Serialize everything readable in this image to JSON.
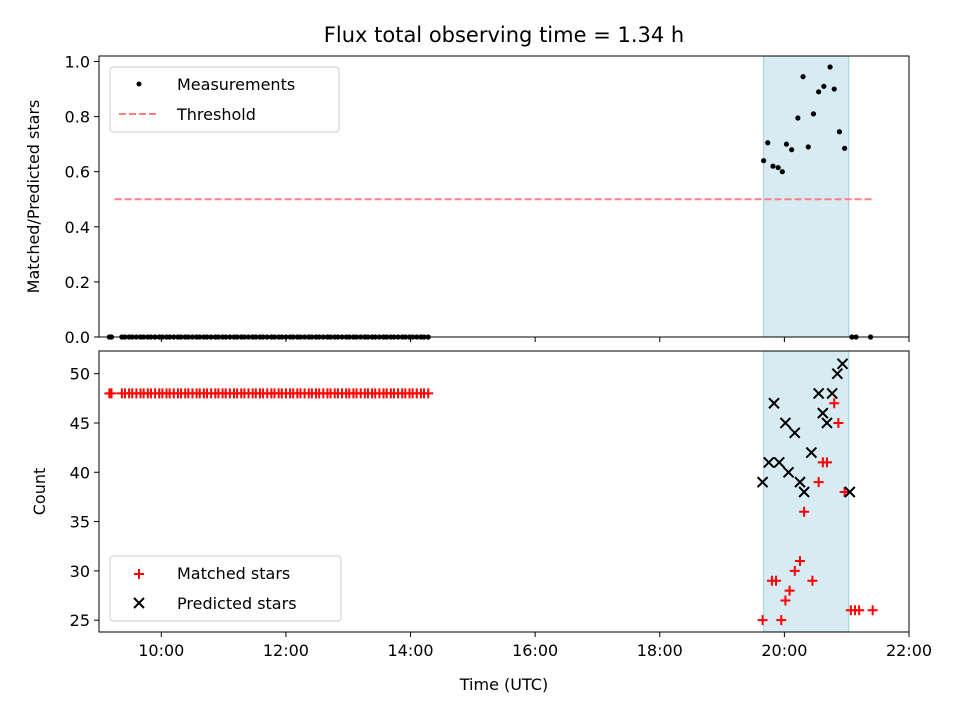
{
  "chart_data": {
    "title": "Flux total observing time = 1.34 h",
    "type": "scatter",
    "xlabel": "Time (UTC)",
    "xlim": [
      "09:00",
      "22:00"
    ],
    "xticks": [
      "10:00",
      "12:00",
      "14:00",
      "16:00",
      "18:00",
      "20:00",
      "22:00"
    ],
    "highlight_span": {
      "start": "19:40",
      "end": "21:02",
      "color": "#add8e6"
    },
    "grid": false,
    "panels": [
      {
        "ylabel": "Matched/Predicted stars",
        "ylim": [
          0,
          1.02
        ],
        "yticks": [
          "0.0",
          "0.2",
          "0.4",
          "0.6",
          "0.8",
          "1.0"
        ],
        "legend_position": "upper-left",
        "series": [
          {
            "name": "Measurements",
            "kind": "scatter",
            "color": "#000000",
            "points": [
              [
                "09:10",
                0
              ],
              [
                "09:12",
                0
              ],
              [
                "09:22",
                0
              ],
              [
                "09:25",
                0
              ],
              [
                "09:29",
                0
              ],
              [
                "09:32",
                0
              ],
              [
                "09:36",
                0
              ],
              [
                "09:40",
                0
              ],
              [
                "09:43",
                0
              ],
              [
                "09:47",
                0
              ],
              [
                "09:50",
                0
              ],
              [
                "09:54",
                0
              ],
              [
                "09:58",
                0
              ],
              [
                "10:01",
                0
              ],
              [
                "10:05",
                0
              ],
              [
                "10:08",
                0
              ],
              [
                "10:12",
                0
              ],
              [
                "10:16",
                0
              ],
              [
                "10:19",
                0
              ],
              [
                "10:23",
                0
              ],
              [
                "10:26",
                0
              ],
              [
                "10:30",
                0
              ],
              [
                "10:34",
                0
              ],
              [
                "10:37",
                0
              ],
              [
                "10:41",
                0
              ],
              [
                "10:44",
                0
              ],
              [
                "10:48",
                0
              ],
              [
                "10:52",
                0
              ],
              [
                "10:55",
                0
              ],
              [
                "10:59",
                0
              ],
              [
                "11:02",
                0
              ],
              [
                "11:06",
                0
              ],
              [
                "11:10",
                0
              ],
              [
                "11:13",
                0
              ],
              [
                "11:17",
                0
              ],
              [
                "11:20",
                0
              ],
              [
                "11:24",
                0
              ],
              [
                "11:28",
                0
              ],
              [
                "11:31",
                0
              ],
              [
                "11:35",
                0
              ],
              [
                "11:38",
                0
              ],
              [
                "11:42",
                0
              ],
              [
                "11:46",
                0
              ],
              [
                "11:49",
                0
              ],
              [
                "11:53",
                0
              ],
              [
                "11:56",
                0
              ],
              [
                "12:00",
                0
              ],
              [
                "12:04",
                0
              ],
              [
                "12:07",
                0
              ],
              [
                "12:11",
                0
              ],
              [
                "12:14",
                0
              ],
              [
                "12:18",
                0
              ],
              [
                "12:22",
                0
              ],
              [
                "12:25",
                0
              ],
              [
                "12:29",
                0
              ],
              [
                "12:32",
                0
              ],
              [
                "12:36",
                0
              ],
              [
                "12:40",
                0
              ],
              [
                "12:43",
                0
              ],
              [
                "12:47",
                0
              ],
              [
                "12:50",
                0
              ],
              [
                "12:54",
                0
              ],
              [
                "12:58",
                0
              ],
              [
                "13:01",
                0
              ],
              [
                "13:05",
                0
              ],
              [
                "13:08",
                0
              ],
              [
                "13:12",
                0
              ],
              [
                "13:16",
                0
              ],
              [
                "13:19",
                0
              ],
              [
                "13:23",
                0
              ],
              [
                "13:26",
                0
              ],
              [
                "13:30",
                0
              ],
              [
                "13:34",
                0
              ],
              [
                "13:37",
                0
              ],
              [
                "13:41",
                0
              ],
              [
                "13:44",
                0
              ],
              [
                "13:48",
                0
              ],
              [
                "13:52",
                0
              ],
              [
                "13:55",
                0
              ],
              [
                "13:59",
                0
              ],
              [
                "14:02",
                0
              ],
              [
                "14:06",
                0
              ],
              [
                "14:10",
                0
              ],
              [
                "14:13",
                0
              ],
              [
                "14:17",
                0
              ],
              [
                "19:40",
                0.64
              ],
              [
                "19:44",
                0.705
              ],
              [
                "19:49",
                0.62
              ],
              [
                "19:54",
                0.615
              ],
              [
                "19:58",
                0.6
              ],
              [
                "20:02",
                0.7
              ],
              [
                "20:07",
                0.68
              ],
              [
                "20:13",
                0.795
              ],
              [
                "20:18",
                0.945
              ],
              [
                "20:23",
                0.69
              ],
              [
                "20:28",
                0.81
              ],
              [
                "20:33",
                0.89
              ],
              [
                "20:38",
                0.91
              ],
              [
                "20:44",
                0.98
              ],
              [
                "20:48",
                0.9
              ],
              [
                "20:53",
                0.745
              ],
              [
                "20:58",
                0.685
              ],
              [
                "21:05",
                0
              ],
              [
                "21:09",
                0
              ],
              [
                "21:23",
                0
              ]
            ]
          },
          {
            "name": "Threshold",
            "kind": "line",
            "color": "#ff7f7f",
            "dash": true,
            "points": [
              [
                "09:15",
                0.5
              ],
              [
                "21:25",
                0.5
              ]
            ]
          }
        ]
      },
      {
        "ylabel": "Count",
        "ylim": [
          23.8,
          52.3
        ],
        "yticks": [
          "25",
          "30",
          "35",
          "40",
          "45",
          "50"
        ],
        "legend_position": "lower-left",
        "series": [
          {
            "name": "Matched stars",
            "kind": "scatter",
            "marker": "plus",
            "color": "#ff0000",
            "points": [
              [
                "09:10",
                48
              ],
              [
                "09:12",
                48
              ],
              [
                "09:22",
                48
              ],
              [
                "09:25",
                48
              ],
              [
                "09:29",
                48
              ],
              [
                "09:32",
                48
              ],
              [
                "09:36",
                48
              ],
              [
                "09:40",
                48
              ],
              [
                "09:43",
                48
              ],
              [
                "09:47",
                48
              ],
              [
                "09:50",
                48
              ],
              [
                "09:54",
                48
              ],
              [
                "09:58",
                48
              ],
              [
                "10:01",
                48
              ],
              [
                "10:05",
                48
              ],
              [
                "10:08",
                48
              ],
              [
                "10:12",
                48
              ],
              [
                "10:16",
                48
              ],
              [
                "10:19",
                48
              ],
              [
                "10:23",
                48
              ],
              [
                "10:26",
                48
              ],
              [
                "10:30",
                48
              ],
              [
                "10:34",
                48
              ],
              [
                "10:37",
                48
              ],
              [
                "10:41",
                48
              ],
              [
                "10:44",
                48
              ],
              [
                "10:48",
                48
              ],
              [
                "10:52",
                48
              ],
              [
                "10:55",
                48
              ],
              [
                "10:59",
                48
              ],
              [
                "11:02",
                48
              ],
              [
                "11:06",
                48
              ],
              [
                "11:10",
                48
              ],
              [
                "11:13",
                48
              ],
              [
                "11:17",
                48
              ],
              [
                "11:20",
                48
              ],
              [
                "11:24",
                48
              ],
              [
                "11:28",
                48
              ],
              [
                "11:31",
                48
              ],
              [
                "11:35",
                48
              ],
              [
                "11:38",
                48
              ],
              [
                "11:42",
                48
              ],
              [
                "11:46",
                48
              ],
              [
                "11:49",
                48
              ],
              [
                "11:53",
                48
              ],
              [
                "11:56",
                48
              ],
              [
                "12:00",
                48
              ],
              [
                "12:04",
                48
              ],
              [
                "12:07",
                48
              ],
              [
                "12:11",
                48
              ],
              [
                "12:14",
                48
              ],
              [
                "12:18",
                48
              ],
              [
                "12:22",
                48
              ],
              [
                "12:25",
                48
              ],
              [
                "12:29",
                48
              ],
              [
                "12:32",
                48
              ],
              [
                "12:36",
                48
              ],
              [
                "12:40",
                48
              ],
              [
                "12:43",
                48
              ],
              [
                "12:47",
                48
              ],
              [
                "12:50",
                48
              ],
              [
                "12:54",
                48
              ],
              [
                "12:58",
                48
              ],
              [
                "13:01",
                48
              ],
              [
                "13:05",
                48
              ],
              [
                "13:08",
                48
              ],
              [
                "13:12",
                48
              ],
              [
                "13:16",
                48
              ],
              [
                "13:19",
                48
              ],
              [
                "13:23",
                48
              ],
              [
                "13:26",
                48
              ],
              [
                "13:30",
                48
              ],
              [
                "13:34",
                48
              ],
              [
                "13:37",
                48
              ],
              [
                "13:41",
                48
              ],
              [
                "13:44",
                48
              ],
              [
                "13:48",
                48
              ],
              [
                "13:52",
                48
              ],
              [
                "13:55",
                48
              ],
              [
                "13:59",
                48
              ],
              [
                "14:02",
                48
              ],
              [
                "14:06",
                48
              ],
              [
                "14:10",
                48
              ],
              [
                "14:13",
                48
              ],
              [
                "14:17",
                48
              ],
              [
                "19:39",
                25
              ],
              [
                "19:48",
                29
              ],
              [
                "19:52",
                29
              ],
              [
                "19:57",
                25
              ],
              [
                "20:01",
                27
              ],
              [
                "20:05",
                28
              ],
              [
                "20:10",
                30
              ],
              [
                "20:15",
                31
              ],
              [
                "20:19",
                36
              ],
              [
                "20:27",
                29
              ],
              [
                "20:33",
                39
              ],
              [
                "20:37",
                41
              ],
              [
                "20:41",
                41
              ],
              [
                "20:48",
                47
              ],
              [
                "20:52",
                45
              ],
              [
                "20:58",
                38
              ],
              [
                "21:04",
                26
              ],
              [
                "21:08",
                26
              ],
              [
                "21:12",
                26
              ],
              [
                "21:25",
                26
              ]
            ]
          },
          {
            "name": "Predicted stars",
            "kind": "scatter",
            "marker": "x",
            "color": "#000000",
            "points": [
              [
                "19:39",
                39
              ],
              [
                "19:45",
                41
              ],
              [
                "19:50",
                47
              ],
              [
                "19:55",
                41
              ],
              [
                "20:01",
                45
              ],
              [
                "20:04",
                40
              ],
              [
                "20:10",
                44
              ],
              [
                "20:15",
                39
              ],
              [
                "20:19",
                38
              ],
              [
                "20:26",
                42
              ],
              [
                "20:33",
                48
              ],
              [
                "20:37",
                46
              ],
              [
                "20:41",
                45
              ],
              [
                "20:46",
                48
              ],
              [
                "20:51",
                50
              ],
              [
                "20:56",
                51
              ],
              [
                "21:03",
                38
              ]
            ]
          }
        ]
      }
    ]
  }
}
